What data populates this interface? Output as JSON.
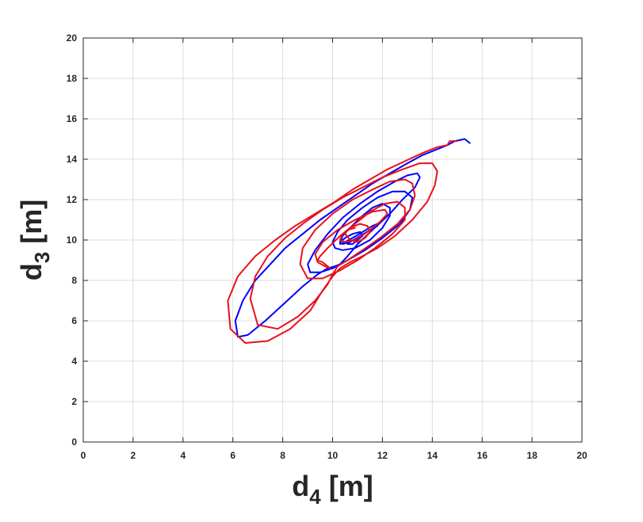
{
  "chart_data": {
    "type": "line",
    "title": "",
    "xlabel": {
      "base": "d",
      "sub": "4",
      "unit": " [m]"
    },
    "ylabel": {
      "base": "d",
      "sub": "3",
      "unit": " [m]"
    },
    "xlim": [
      0,
      20
    ],
    "ylim": [
      0,
      20
    ],
    "xticks": [
      "0",
      "2",
      "4",
      "6",
      "8",
      "10",
      "12",
      "14",
      "16",
      "18",
      "20"
    ],
    "yticks": [
      "0",
      "2",
      "4",
      "6",
      "8",
      "10",
      "12",
      "14",
      "16",
      "18",
      "20"
    ],
    "grid": true,
    "colors": {
      "blue": "#0000ff",
      "red": "#e8101c",
      "grid": "#dcdcdc",
      "axis": "#262626"
    },
    "series": [
      {
        "color": "blue",
        "x": [
          15.5,
          15.3,
          14.9,
          14.6,
          14.2,
          13.6,
          13.0,
          12.3,
          11.6,
          10.9,
          10.2,
          9.5,
          8.8,
          8.1,
          7.5,
          6.9,
          6.4,
          6.1,
          6.2,
          6.6,
          7.3,
          8.1,
          8.8,
          9.4,
          9.8,
          10.1,
          10.3,
          10.6,
          11.0,
          11.6,
          12.3,
          12.8,
          13.3,
          13.5,
          13.4,
          13.0,
          12.5,
          11.8,
          11.1,
          10.4,
          9.8,
          9.3,
          9.0,
          9.1,
          9.5,
          10.0,
          10.6,
          11.3,
          12.0,
          12.7,
          13.1,
          13.2,
          12.9,
          12.4,
          11.8,
          11.2,
          10.6,
          10.2,
          10.0,
          10.1,
          10.4,
          10.9,
          11.5,
          12.0,
          12.3,
          12.3,
          12.0,
          11.6,
          11.1,
          10.7,
          10.4,
          10.3,
          10.4,
          10.7,
          11.1,
          11.5,
          11.8,
          11.8,
          11.6,
          11.2,
          10.8,
          10.5,
          10.3,
          10.3,
          10.5,
          10.8,
          11.1,
          11.2,
          11.0,
          10.8,
          10.6
        ],
        "y": [
          14.8,
          15.0,
          14.9,
          14.7,
          14.5,
          14.2,
          13.8,
          13.3,
          12.8,
          12.2,
          11.6,
          11.0,
          10.3,
          9.6,
          8.8,
          8.0,
          7.0,
          6.0,
          5.2,
          5.3,
          6.0,
          6.9,
          7.7,
          8.3,
          8.6,
          8.7,
          8.8,
          9.2,
          9.8,
          10.5,
          11.3,
          12.0,
          12.6,
          13.1,
          13.3,
          13.2,
          12.9,
          12.4,
          11.8,
          11.1,
          10.3,
          9.5,
          8.8,
          8.4,
          8.4,
          8.6,
          9.0,
          9.5,
          10.1,
          10.8,
          11.5,
          12.1,
          12.4,
          12.4,
          12.1,
          11.6,
          11.0,
          10.4,
          9.9,
          9.6,
          9.5,
          9.6,
          10.0,
          10.6,
          11.2,
          11.6,
          11.8,
          11.6,
          11.1,
          10.6,
          10.2,
          9.9,
          9.8,
          9.9,
          10.2,
          10.5,
          10.7,
          10.8,
          10.7,
          10.4,
          10.1,
          9.9,
          9.8,
          9.9,
          10.1,
          10.3,
          10.4,
          10.2,
          10.0,
          9.8,
          9.8
        ]
      },
      {
        "color": "red",
        "x": [
          15.0,
          14.7,
          14.6,
          14.2,
          13.6,
          12.9,
          12.2,
          11.5,
          10.8,
          10.1,
          9.3,
          8.5,
          7.7,
          6.9,
          6.2,
          5.8,
          5.9,
          6.5,
          7.4,
          8.3,
          9.1,
          9.6,
          10.0,
          10.3,
          10.7,
          11.2,
          11.8,
          12.5,
          13.2,
          13.8,
          14.1,
          14.2,
          14.0,
          13.5,
          12.8,
          12.0,
          11.2,
          10.4,
          9.6,
          8.8,
          8.1,
          7.4,
          6.9,
          6.7,
          7.0,
          7.8,
          8.6,
          9.3,
          9.8,
          10.0,
          10.1,
          10.2,
          10.6,
          11.2,
          11.9,
          12.6,
          13.1,
          13.3,
          13.2,
          12.9,
          12.3,
          11.6,
          10.8,
          10.0,
          9.3,
          8.8,
          8.7,
          9.0,
          9.6,
          10.3,
          11.0,
          11.7,
          12.4,
          12.9,
          12.9,
          12.6,
          12.1,
          11.5,
          10.9,
          10.3,
          9.8,
          9.5,
          9.4,
          9.6,
          9.8,
          9.9,
          9.7,
          9.4,
          9.3,
          9.6,
          10.2,
          10.9,
          11.6,
          12.1,
          12.2,
          11.9,
          11.4,
          10.9,
          10.5,
          10.3,
          10.4,
          10.7,
          11.1,
          11.4,
          11.5,
          11.3,
          11.0,
          10.7,
          10.5,
          10.6,
          10.9
        ],
        "y": [
          14.9,
          14.9,
          14.7,
          14.6,
          14.3,
          13.9,
          13.5,
          13.0,
          12.5,
          11.9,
          11.3,
          10.7,
          10.0,
          9.2,
          8.2,
          7.0,
          5.6,
          4.9,
          5.0,
          5.6,
          6.5,
          7.5,
          8.2,
          8.6,
          8.9,
          9.2,
          9.6,
          10.2,
          11.0,
          11.9,
          12.7,
          13.4,
          13.8,
          13.8,
          13.5,
          13.1,
          12.6,
          12.1,
          11.5,
          10.8,
          10.1,
          9.2,
          8.2,
          7.1,
          5.8,
          5.6,
          6.2,
          7.0,
          7.8,
          8.3,
          8.5,
          8.7,
          9.0,
          9.5,
          10.1,
          10.8,
          11.5,
          12.2,
          12.8,
          13.0,
          12.9,
          12.5,
          12.0,
          11.3,
          10.5,
          9.6,
          8.8,
          8.1,
          8.1,
          8.5,
          9.0,
          9.6,
          10.3,
          11.0,
          11.6,
          11.9,
          11.8,
          11.4,
          10.8,
          10.2,
          9.6,
          9.2,
          9.0,
          8.9,
          8.7,
          8.6,
          8.7,
          8.9,
          9.3,
          9.9,
          10.5,
          11.0,
          11.4,
          11.5,
          11.3,
          10.9,
          10.4,
          10.0,
          9.9,
          10.0,
          10.3,
          10.6,
          10.8,
          10.7,
          10.4,
          10.1,
          9.9,
          10.0,
          10.3,
          10.5,
          10.6
        ]
      }
    ]
  }
}
